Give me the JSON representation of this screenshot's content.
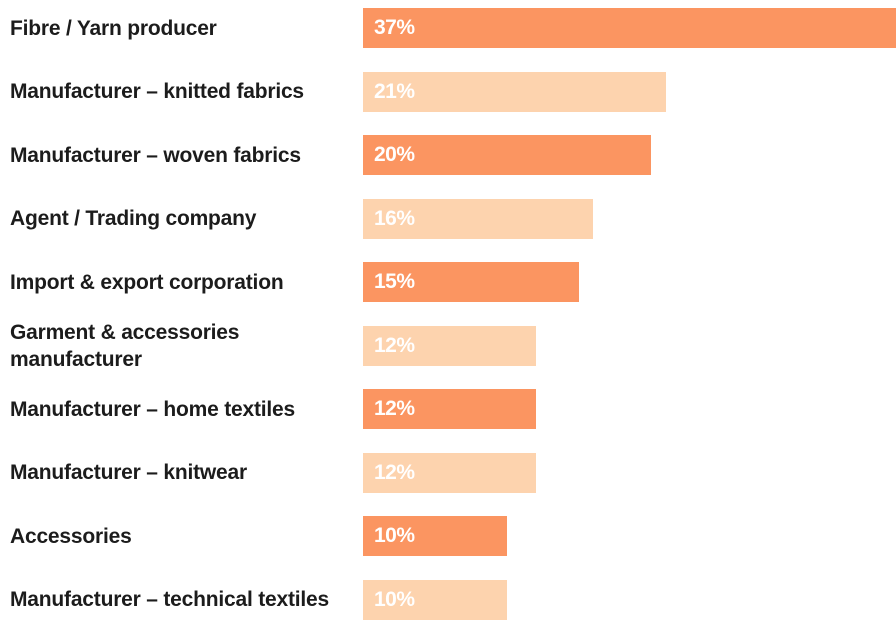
{
  "chart_data": {
    "type": "bar",
    "orientation": "horizontal",
    "categories": [
      "Fibre / Yarn producer",
      "Manufacturer – knitted fabrics",
      "Manufacturer – woven fabrics",
      "Agent / Trading company",
      "Import & export corporation",
      "Garment & accessories manufacturer",
      "Manufacturer – home textiles",
      "Manufacturer – knitwear",
      "Accessories",
      "Manufacturer – technical textiles"
    ],
    "values": [
      37,
      21,
      20,
      16,
      15,
      12,
      12,
      12,
      10,
      10
    ],
    "value_labels": [
      "37%",
      "21%",
      "20%",
      "16%",
      "15%",
      "12%",
      "12%",
      "12%",
      "10%",
      "10%"
    ],
    "unit": "%",
    "title": "",
    "xlabel": "",
    "ylabel": "",
    "xlim": [
      0,
      37
    ],
    "grid": false,
    "legend": "none",
    "colors": {
      "dark": "#fb9561",
      "light": "#fdd3ae",
      "label_text": "#1c1c1c",
      "value_text": "#ffffff"
    },
    "color_pattern": [
      "dark",
      "light",
      "dark",
      "light",
      "dark",
      "light",
      "dark",
      "light",
      "dark",
      "light"
    ]
  }
}
